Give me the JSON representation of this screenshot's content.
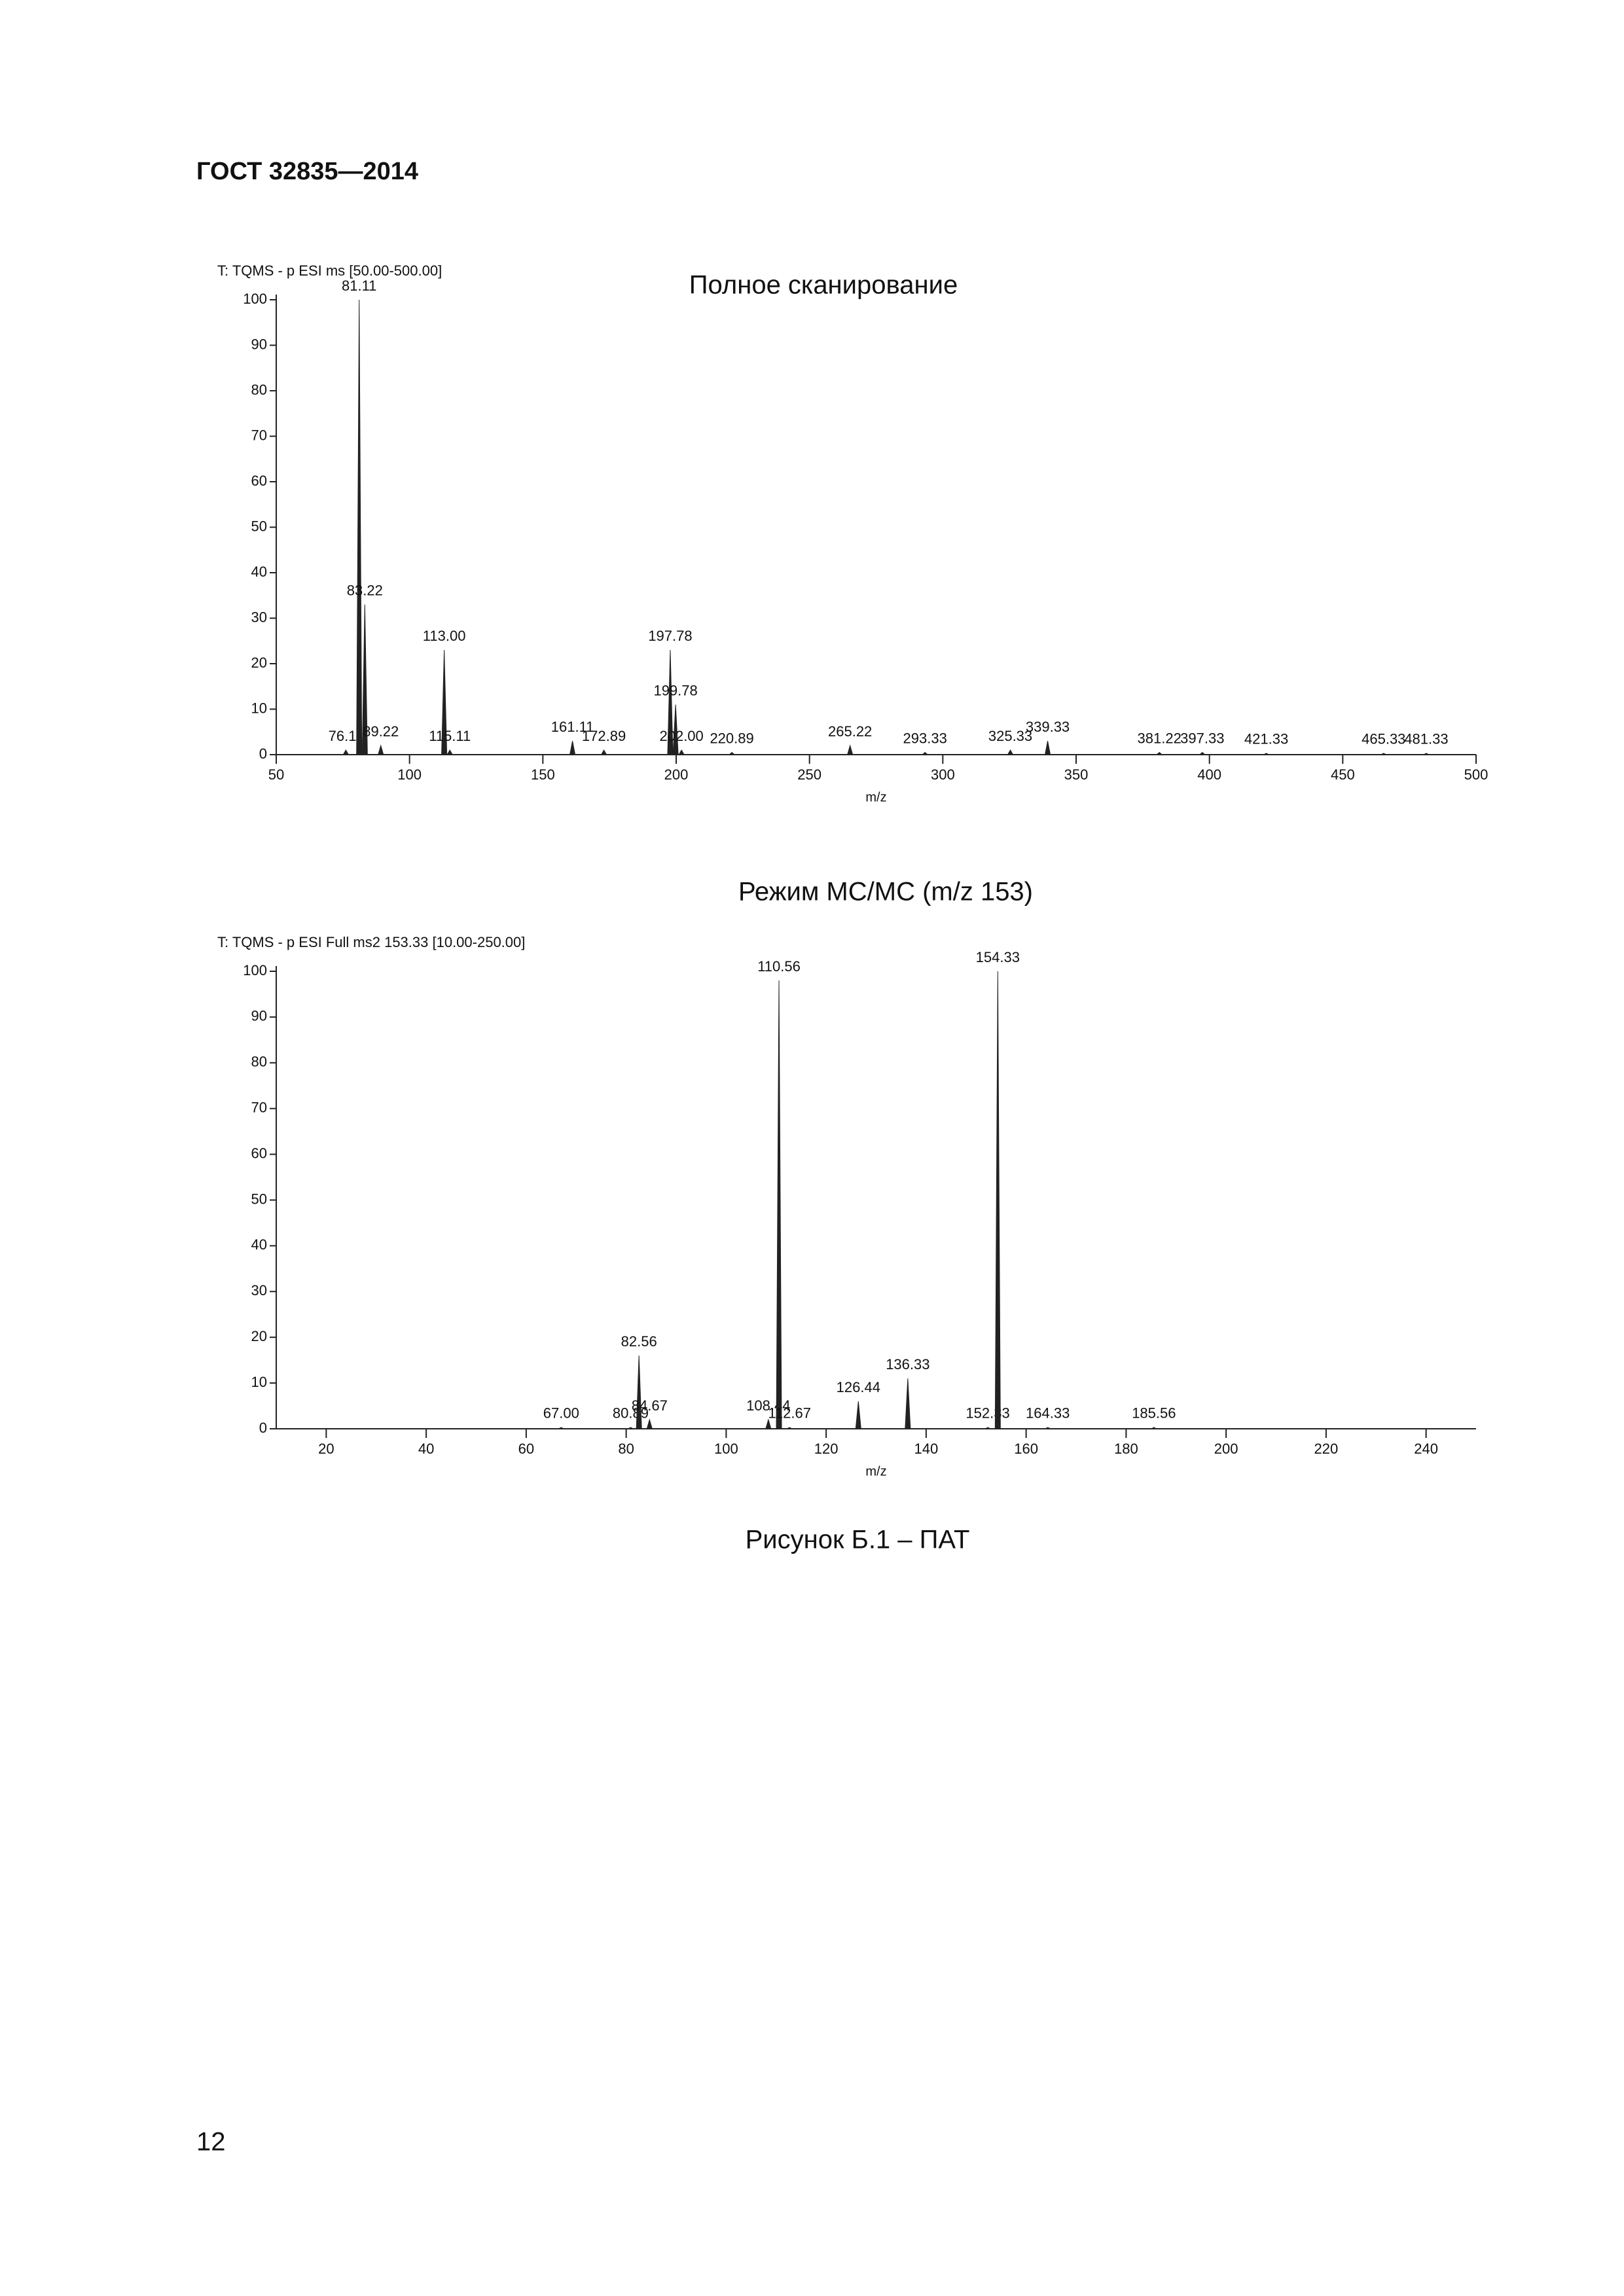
{
  "header": "ГОСТ 32835—2014",
  "chart_data": [
    {
      "type": "spectrum",
      "title": "Полное сканирование",
      "subtitle": "T: TQMS - p ESI ms [50.00-500.00]",
      "x_label": "m/z",
      "x": [
        76.11,
        81.11,
        83.22,
        89.22,
        113.0,
        115.11,
        161.11,
        172.89,
        197.78,
        199.78,
        202.0,
        220.89,
        265.22,
        293.33,
        325.33,
        339.33,
        381.22,
        397.33,
        421.33,
        465.33,
        481.33
      ],
      "x_labels": [
        "76.11",
        "81.11",
        "83.22",
        "89.22",
        "113.00",
        "115.11",
        "161.11",
        "172.89",
        "197.78",
        "199.78",
        "202.00",
        "220.89",
        "265.22",
        "293.33",
        "325.33",
        "339.33",
        "381.22",
        "397.33",
        "421.33",
        "465.33",
        "481.33"
      ],
      "values": [
        1,
        100,
        33,
        2,
        23,
        1,
        3,
        1,
        23,
        11,
        1,
        0.5,
        2,
        0.5,
        1,
        3,
        0.5,
        0.5,
        0.3,
        0.3,
        0.3
      ],
      "color": "#222222",
      "xlim": [
        50,
        500
      ],
      "xticks": [
        50,
        100,
        150,
        200,
        250,
        300,
        350,
        400,
        450,
        500
      ],
      "ylim": [
        0,
        100
      ],
      "yticks": [
        0,
        10,
        20,
        30,
        40,
        50,
        60,
        70,
        80,
        90,
        100
      ]
    },
    {
      "type": "spectrum",
      "title": "Режим МС/МС (m/z 153)",
      "subtitle": "T: TQMS - p ESI Full ms2 153.33 [10.00-250.00]",
      "x_label": "m/z",
      "x": [
        67.0,
        80.89,
        82.56,
        84.67,
        108.44,
        110.56,
        112.67,
        126.44,
        136.33,
        152.33,
        154.33,
        164.33,
        185.56
      ],
      "x_labels": [
        "67.00",
        "80.89",
        "82.56",
        "84.67",
        "108.44",
        "110.56",
        "112.67",
        "126.44",
        "136.33",
        "152.33",
        "154.33",
        "164.33",
        "185.56"
      ],
      "values": [
        0.3,
        0.3,
        16,
        2,
        2,
        98,
        0.3,
        6,
        11,
        0.3,
        100,
        0.3,
        0.3
      ],
      "color": "#222222",
      "xlim": [
        10,
        250
      ],
      "xticks": [
        20,
        40,
        60,
        80,
        100,
        120,
        140,
        160,
        180,
        200,
        220,
        240
      ],
      "ylim": [
        0,
        100
      ],
      "yticks": [
        0,
        10,
        20,
        30,
        40,
        50,
        60,
        70,
        80,
        90,
        100
      ]
    }
  ],
  "caption": "Рисунок Б.1 – ПАТ",
  "page_number": "12"
}
